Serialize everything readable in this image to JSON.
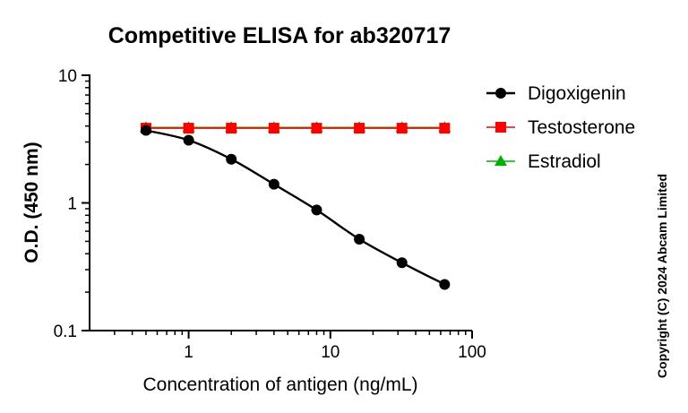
{
  "chart_data": {
    "type": "line",
    "title": "Competitive ELISA for ab320717",
    "xlabel": "Concentration of antigen (ng/mL)",
    "ylabel": "O.D. (450 nm)",
    "x_scale": "log",
    "y_scale": "log",
    "xlim": [
      0.2,
      100
    ],
    "ylim": [
      0.1,
      10
    ],
    "x_ticks": [
      {
        "value": 1,
        "label": "1"
      },
      {
        "value": 10,
        "label": "10"
      },
      {
        "value": 100,
        "label": "100"
      }
    ],
    "y_ticks": [
      {
        "value": 0.1,
        "label": "0.1"
      },
      {
        "value": 1,
        "label": "1"
      },
      {
        "value": 10,
        "label": "10"
      }
    ],
    "grid": false,
    "legend_position": "top-right",
    "series": [
      {
        "name": "Digoxigenin",
        "color": "#000000",
        "marker": "circle",
        "x": [
          0.5,
          1,
          2,
          4,
          8,
          16,
          32,
          64
        ],
        "y": [
          3.7,
          3.1,
          2.2,
          1.4,
          0.88,
          0.52,
          0.34,
          0.23
        ]
      },
      {
        "name": "Testosterone",
        "color": "#ff0000",
        "marker": "square",
        "x": [
          0.5,
          1,
          2,
          4,
          8,
          16,
          32,
          64
        ],
        "y": [
          3.85,
          3.85,
          3.85,
          3.85,
          3.85,
          3.85,
          3.85,
          3.85
        ]
      },
      {
        "name": "Estradiol",
        "color": "#00b000",
        "marker": "triangle",
        "x": [
          0.5,
          1,
          2,
          4,
          8,
          16,
          32,
          64
        ],
        "y": [
          3.9,
          3.9,
          3.9,
          3.9,
          3.9,
          3.9,
          3.9,
          3.9
        ]
      }
    ]
  },
  "copyright": "Copyright (C) 2024 Abcam Limited"
}
